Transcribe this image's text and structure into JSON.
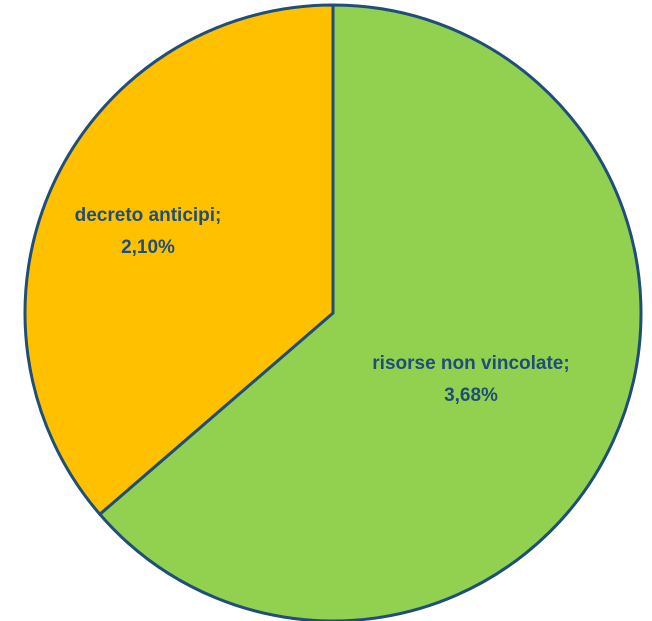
{
  "chart_data": {
    "type": "pie",
    "categories": [
      "risorse non vincolate",
      "decreto anticipi"
    ],
    "values": [
      3.68,
      2.1
    ],
    "unit": "%",
    "slices": [
      {
        "name": "risorse non vincolate",
        "value": 3.68,
        "label_name": "risorse non vincolate;",
        "label_value": "3,68%",
        "color": "#92d050"
      },
      {
        "name": "decreto anticipi",
        "value": 2.1,
        "label_name": "decreto anticipi;",
        "label_value": "2,10%",
        "color": "#ffc000"
      }
    ],
    "start": "12 o'clock",
    "direction": "clockwise",
    "title": "",
    "legend": "none"
  },
  "colors": {
    "border": "#1f4e79",
    "label_text": "#1f4e79"
  }
}
